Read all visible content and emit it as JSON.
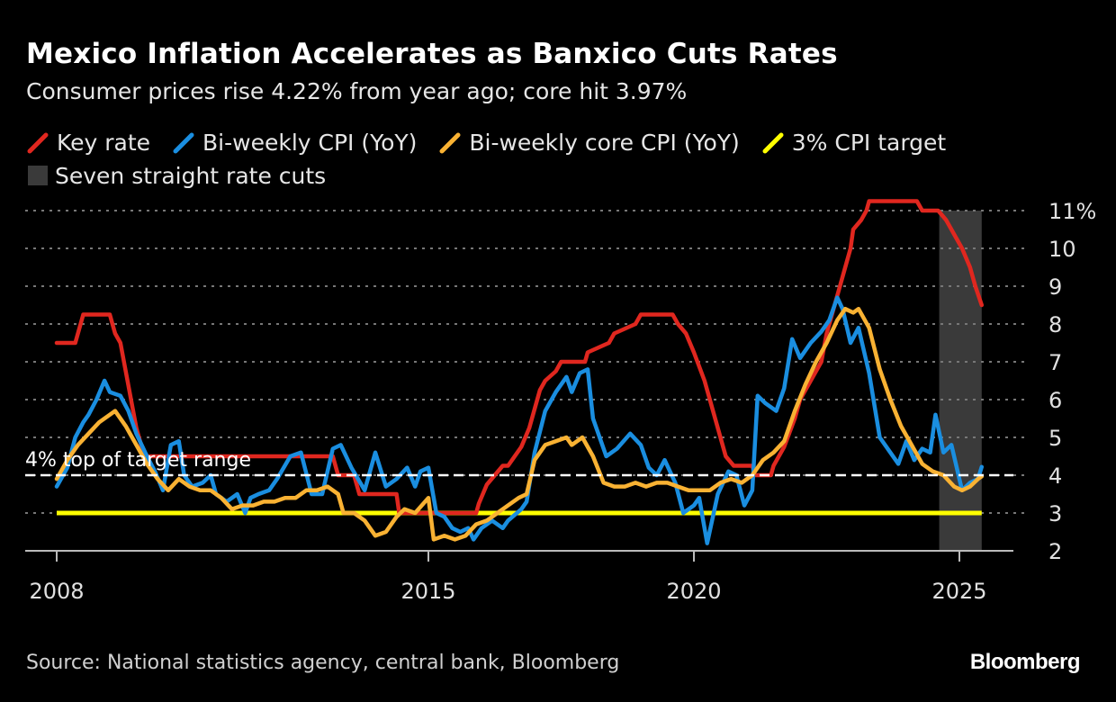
{
  "chart_data": {
    "type": "line",
    "title": "Mexico Inflation Accelerates as Banxico Cuts Rates",
    "subtitle": "Consumer prices rise 4.22% from year ago; core hit 3.97%",
    "source": "Source: National statistics agency, central bank, Bloomberg",
    "logo": "Bloomberg",
    "xlim": [
      2008,
      2026
    ],
    "ylim": [
      2,
      11
    ],
    "x_ticks": [
      2008,
      2015,
      2020,
      2025
    ],
    "x_tick_labels": [
      "2008",
      "2015",
      "2020",
      "2025"
    ],
    "y_ticks": [
      2,
      3,
      4,
      5,
      6,
      7,
      8,
      9,
      10,
      11
    ],
    "y_tick_labels": [
      "2",
      "3",
      "4",
      "5",
      "6",
      "7",
      "8",
      "9",
      "10",
      "11%"
    ],
    "y_axis_side": "right",
    "grid": "horizontal dotted",
    "legend_position": "top",
    "annotations": [
      {
        "text": "4% top of target range",
        "y": 4
      }
    ],
    "shaded_region": {
      "name": "Seven straight rate cuts",
      "x": [
        2024.62,
        2025.42
      ],
      "color": "#3a3a3a"
    },
    "reference_lines": [
      {
        "name": "3% CPI target",
        "y": 3,
        "x": [
          2008,
          2025.42
        ],
        "color": "#ffff00"
      },
      {
        "name": "4% top of target range",
        "y": 4,
        "color": "#ffffff",
        "style": "dashed"
      }
    ],
    "series": [
      {
        "name": "Key rate",
        "color": "#e0271f",
        "x": [
          2008.0,
          2008.35,
          2008.5,
          2009.0,
          2009.1,
          2009.2,
          2009.3,
          2009.4,
          2009.5,
          2009.6,
          2009.7,
          2013.2,
          2013.3,
          2013.6,
          2013.7,
          2014.4,
          2014.45,
          2015.9,
          2015.95,
          2016.1,
          2016.4,
          2016.5,
          2016.75,
          2016.9,
          2017.0,
          2017.1,
          2017.2,
          2017.4,
          2017.5,
          2017.95,
          2018.0,
          2018.4,
          2018.5,
          2018.9,
          2019.0,
          2019.6,
          2019.7,
          2019.85,
          2020.0,
          2020.2,
          2020.3,
          2020.4,
          2020.5,
          2020.6,
          2020.75,
          2021.1,
          2021.15,
          2021.45,
          2021.5,
          2021.7,
          2021.9,
          2022.0,
          2022.2,
          2022.4,
          2022.5,
          2022.65,
          2022.8,
          2022.95,
          2023.0,
          2023.15,
          2023.25,
          2023.3,
          2024.2,
          2024.3,
          2024.6,
          2024.75,
          2024.85,
          2024.95,
          2025.05,
          2025.2,
          2025.3,
          2025.42
        ],
        "values": [
          7.5,
          7.5,
          8.25,
          8.25,
          7.75,
          7.5,
          6.75,
          6.0,
          5.25,
          4.75,
          4.5,
          4.5,
          4.0,
          4.0,
          3.5,
          3.5,
          3.0,
          3.0,
          3.25,
          3.75,
          4.25,
          4.25,
          4.75,
          5.25,
          5.75,
          6.25,
          6.5,
          6.75,
          7.0,
          7.0,
          7.25,
          7.5,
          7.75,
          8.0,
          8.25,
          8.25,
          8.0,
          7.75,
          7.25,
          6.5,
          6.0,
          5.5,
          5.0,
          4.5,
          4.25,
          4.25,
          4.0,
          4.0,
          4.25,
          4.75,
          5.5,
          6.0,
          6.5,
          7.0,
          7.75,
          8.5,
          9.25,
          10.0,
          10.5,
          10.75,
          11.0,
          11.25,
          11.25,
          11.0,
          11.0,
          10.75,
          10.5,
          10.25,
          10.0,
          9.5,
          9.0,
          8.5
        ]
      },
      {
        "name": "Bi-weekly CPI (YoY)",
        "color": "#1a8ee0",
        "x": [
          2008.0,
          2008.2,
          2008.35,
          2008.5,
          2008.6,
          2008.75,
          2008.9,
          2009.0,
          2009.2,
          2009.35,
          2009.5,
          2009.7,
          2009.85,
          2010.0,
          2010.15,
          2010.3,
          2010.4,
          2010.55,
          2010.75,
          2010.9,
          2011.0,
          2011.2,
          2011.4,
          2011.55,
          2011.65,
          2011.8,
          2012.0,
          2012.15,
          2012.4,
          2012.6,
          2012.8,
          2013.0,
          2013.2,
          2013.35,
          2013.55,
          2013.8,
          2014.0,
          2014.2,
          2014.4,
          2014.6,
          2014.75,
          2014.85,
          2015.0,
          2015.15,
          2015.3,
          2015.45,
          2015.6,
          2015.75,
          2015.85,
          2016.0,
          2016.2,
          2016.4,
          2016.5,
          2016.75,
          2016.85,
          2017.0,
          2017.2,
          2017.4,
          2017.6,
          2017.7,
          2017.85,
          2018.0,
          2018.1,
          2018.35,
          2018.55,
          2018.8,
          2019.0,
          2019.15,
          2019.3,
          2019.45,
          2019.65,
          2019.8,
          2020.0,
          2020.1,
          2020.25,
          2020.45,
          2020.65,
          2020.8,
          2020.95,
          2021.1,
          2021.2,
          2021.35,
          2021.55,
          2021.7,
          2021.85,
          2022.0,
          2022.2,
          2022.4,
          2022.55,
          2022.7,
          2022.8,
          2022.95,
          2023.1,
          2023.3,
          2023.5,
          2023.7,
          2023.85,
          2024.0,
          2024.15,
          2024.3,
          2024.45,
          2024.55,
          2024.7,
          2024.85,
          2025.05,
          2025.2,
          2025.35,
          2025.42
        ],
        "values": [
          3.7,
          4.2,
          5.0,
          5.4,
          5.6,
          6.0,
          6.5,
          6.2,
          6.1,
          5.7,
          5.1,
          4.5,
          4.1,
          3.6,
          4.8,
          4.9,
          4.0,
          3.7,
          3.8,
          4.0,
          3.5,
          3.3,
          3.5,
          3.0,
          3.4,
          3.5,
          3.6,
          3.9,
          4.5,
          4.6,
          3.5,
          3.5,
          4.7,
          4.8,
          4.2,
          3.6,
          4.6,
          3.7,
          3.9,
          4.2,
          3.7,
          4.1,
          4.2,
          3.0,
          2.9,
          2.6,
          2.5,
          2.6,
          2.3,
          2.6,
          2.8,
          2.6,
          2.8,
          3.1,
          3.3,
          4.6,
          5.7,
          6.2,
          6.6,
          6.2,
          6.7,
          6.8,
          5.5,
          4.5,
          4.7,
          5.1,
          4.8,
          4.2,
          4.0,
          4.4,
          3.8,
          3.0,
          3.2,
          3.4,
          2.2,
          3.5,
          4.1,
          4.0,
          3.2,
          3.6,
          6.1,
          5.9,
          5.7,
          6.3,
          7.6,
          7.1,
          7.5,
          7.8,
          8.1,
          8.7,
          8.4,
          7.5,
          7.9,
          6.7,
          5.0,
          4.6,
          4.3,
          4.9,
          4.4,
          4.7,
          4.6,
          5.6,
          4.6,
          4.8,
          3.6,
          3.8,
          3.9,
          4.22
        ]
      },
      {
        "name": "Bi-weekly core CPI (YoY)",
        "color": "#f9b233",
        "x": [
          2008.0,
          2008.2,
          2008.4,
          2008.6,
          2008.8,
          2009.0,
          2009.1,
          2009.3,
          2009.5,
          2009.7,
          2009.9,
          2010.1,
          2010.3,
          2010.5,
          2010.7,
          2010.9,
          2011.1,
          2011.3,
          2011.5,
          2011.7,
          2011.9,
          2012.1,
          2012.3,
          2012.5,
          2012.7,
          2012.9,
          2013.1,
          2013.3,
          2013.4,
          2013.6,
          2013.8,
          2014.0,
          2014.2,
          2014.4,
          2014.55,
          2014.75,
          2015.0,
          2015.1,
          2015.3,
          2015.5,
          2015.7,
          2015.9,
          2016.1,
          2016.3,
          2016.5,
          2016.7,
          2016.85,
          2017.0,
          2017.2,
          2017.4,
          2017.6,
          2017.7,
          2017.9,
          2018.1,
          2018.3,
          2018.5,
          2018.7,
          2018.9,
          2019.1,
          2019.3,
          2019.5,
          2019.7,
          2019.9,
          2020.1,
          2020.3,
          2020.5,
          2020.7,
          2020.9,
          2021.1,
          2021.3,
          2021.5,
          2021.7,
          2021.9,
          2022.1,
          2022.3,
          2022.5,
          2022.7,
          2022.85,
          2023.0,
          2023.1,
          2023.3,
          2023.5,
          2023.7,
          2023.9,
          2024.1,
          2024.3,
          2024.5,
          2024.7,
          2024.9,
          2025.05,
          2025.2,
          2025.35,
          2025.42
        ],
        "values": [
          3.9,
          4.4,
          4.8,
          5.1,
          5.4,
          5.6,
          5.7,
          5.3,
          4.8,
          4.3,
          3.9,
          3.6,
          3.9,
          3.7,
          3.6,
          3.6,
          3.4,
          3.1,
          3.2,
          3.2,
          3.3,
          3.3,
          3.4,
          3.4,
          3.6,
          3.6,
          3.7,
          3.5,
          3.0,
          3.0,
          2.8,
          2.4,
          2.5,
          2.9,
          3.1,
          3.0,
          3.4,
          2.3,
          2.4,
          2.3,
          2.4,
          2.7,
          2.8,
          3.0,
          3.2,
          3.4,
          3.5,
          4.4,
          4.8,
          4.9,
          5.0,
          4.8,
          5.0,
          4.5,
          3.8,
          3.7,
          3.7,
          3.8,
          3.7,
          3.8,
          3.8,
          3.7,
          3.6,
          3.6,
          3.6,
          3.8,
          3.9,
          3.8,
          4.0,
          4.4,
          4.6,
          4.9,
          5.7,
          6.4,
          7.0,
          7.5,
          8.1,
          8.4,
          8.3,
          8.4,
          7.9,
          6.8,
          6.0,
          5.3,
          4.8,
          4.3,
          4.1,
          4.0,
          3.7,
          3.6,
          3.7,
          3.9,
          3.97
        ]
      }
    ]
  }
}
